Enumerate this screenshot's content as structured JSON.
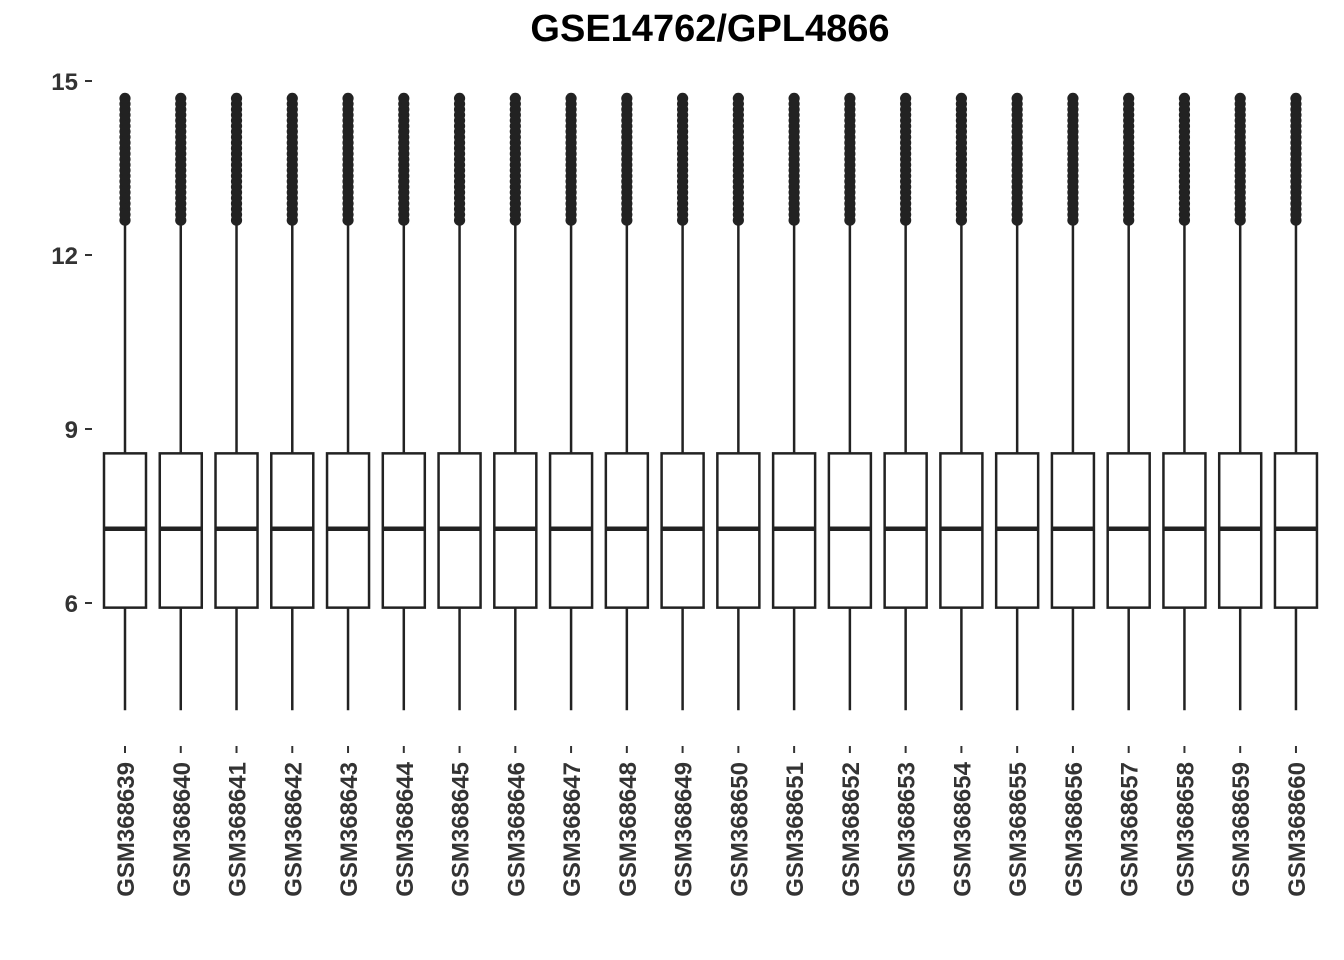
{
  "chart_data": {
    "type": "boxplot",
    "title": "GSE14762/GPL4866",
    "xlabel": "",
    "ylabel": "",
    "ylim": [
      3.5,
      15.4
    ],
    "yticks": [
      6,
      9,
      12,
      15
    ],
    "grid": false,
    "legend": "none",
    "categories": [
      "GSM368639",
      "GSM368640",
      "GSM368641",
      "GSM368642",
      "GSM368643",
      "GSM368644",
      "GSM368645",
      "GSM368646",
      "GSM368647",
      "GSM368648",
      "GSM368649",
      "GSM368650",
      "GSM368651",
      "GSM368652",
      "GSM368653",
      "GSM368654",
      "GSM368655",
      "GSM368656",
      "GSM368657",
      "GSM368658",
      "GSM368659",
      "GSM368660"
    ],
    "stats": {
      "whisker_low": 4.15,
      "q1": 5.92,
      "median": 7.28,
      "q3": 8.58,
      "whisker_high": 12.6,
      "outlier_max": 14.7
    },
    "colors": {
      "box_stroke": "#222222",
      "box_fill": "#ffffff",
      "outlier": "#222222",
      "axis_text": "#333333"
    }
  }
}
